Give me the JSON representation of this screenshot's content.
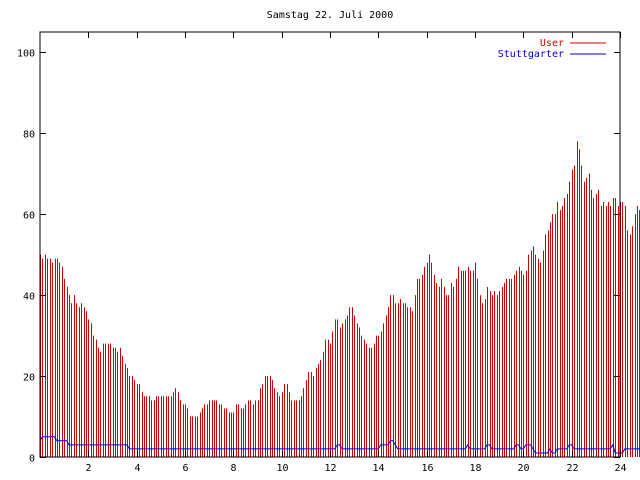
{
  "chart_data": {
    "type": "bar",
    "title": "Samstag 22. Juli 2000",
    "xlabel": "",
    "ylabel": "",
    "xlim": [
      0,
      24
    ],
    "ylim": [
      0,
      105
    ],
    "xticks": [
      2,
      4,
      6,
      8,
      10,
      12,
      14,
      16,
      18,
      20,
      22,
      24
    ],
    "yticks": [
      0,
      20,
      40,
      60,
      80,
      100
    ],
    "grid": false,
    "legend_position": "top-right",
    "step_hours": 0.1,
    "series": [
      {
        "name": "User",
        "color": "#cc0000",
        "style": "impulses",
        "values": [
          50,
          49,
          50,
          49,
          49,
          48,
          49,
          49,
          48,
          47,
          44,
          42,
          40,
          38,
          40,
          38,
          37,
          38,
          37,
          36,
          34,
          33,
          30,
          29,
          27,
          26,
          28,
          28,
          28,
          28,
          27,
          27,
          26,
          27,
          25,
          23,
          22,
          20,
          20,
          19,
          18,
          18,
          16,
          15,
          15,
          15,
          14,
          14,
          15,
          15,
          15,
          15,
          15,
          15,
          15,
          16,
          17,
          16,
          14,
          13,
          13,
          12,
          10,
          10,
          10,
          10,
          11,
          12,
          13,
          13,
          14,
          14,
          14,
          14,
          13,
          13,
          12,
          12,
          11,
          11,
          11,
          13,
          13,
          12,
          12,
          13,
          14,
          14,
          13,
          14,
          14,
          17,
          18,
          20,
          20,
          20,
          19,
          17,
          16,
          15,
          16,
          18,
          18,
          16,
          14,
          14,
          14,
          14,
          15,
          17,
          19,
          21,
          21,
          20,
          22,
          23,
          24,
          26,
          29,
          29,
          28,
          31,
          34,
          34,
          32,
          33,
          34,
          35,
          37,
          37,
          35,
          33,
          32,
          30,
          29,
          28,
          27,
          27,
          28,
          30,
          30,
          31,
          33,
          35,
          37,
          40,
          40,
          38,
          38,
          39,
          38,
          38,
          37,
          37,
          36,
          40,
          44,
          44,
          45,
          47,
          48,
          50,
          48,
          45,
          43,
          42,
          44,
          42,
          40,
          40,
          43,
          42,
          44,
          47,
          46,
          46,
          46,
          47,
          46,
          46,
          48,
          44,
          40,
          38,
          39,
          42,
          41,
          40,
          41,
          40,
          41,
          42,
          43,
          44,
          44,
          44,
          45,
          46,
          47,
          46,
          45,
          46,
          50,
          51,
          52,
          50,
          49,
          48,
          51,
          55,
          56,
          58,
          60,
          60,
          63,
          61,
          62,
          64,
          65,
          68,
          71,
          72,
          78,
          76,
          72,
          68,
          69,
          70,
          66,
          64,
          65,
          66,
          62,
          63,
          62,
          63,
          62,
          64,
          64,
          62,
          63,
          63,
          62,
          56,
          55,
          57,
          60,
          62,
          61,
          57,
          58
        ]
      },
      {
        "name": "Stuttgarter",
        "color": "#0000cc",
        "style": "lines",
        "values": [
          4,
          5,
          5,
          5,
          5,
          5,
          5,
          4,
          4,
          4,
          4,
          4,
          3,
          3,
          3,
          3,
          3,
          3,
          3,
          3,
          3,
          3,
          3,
          3,
          3,
          3,
          3,
          3,
          3,
          3,
          3,
          3,
          3,
          3,
          3,
          3,
          3,
          2,
          2,
          2,
          2,
          2,
          2,
          2,
          2,
          2,
          2,
          2,
          2,
          2,
          2,
          2,
          2,
          2,
          2,
          2,
          2,
          2,
          2,
          2,
          2,
          2,
          2,
          2,
          2,
          2,
          2,
          2,
          2,
          2,
          2,
          2,
          2,
          2,
          2,
          2,
          2,
          2,
          2,
          2,
          2,
          2,
          2,
          2,
          2,
          2,
          2,
          2,
          2,
          2,
          2,
          2,
          2,
          2,
          2,
          2,
          2,
          2,
          2,
          2,
          2,
          2,
          2,
          2,
          2,
          2,
          2,
          2,
          2,
          2,
          2,
          2,
          2,
          2,
          2,
          2,
          2,
          2,
          2,
          2,
          2,
          2,
          2,
          3,
          3,
          2,
          2,
          2,
          2,
          2,
          2,
          2,
          2,
          2,
          2,
          2,
          2,
          2,
          2,
          2,
          2,
          3,
          3,
          3,
          3,
          4,
          4,
          3,
          2,
          2,
          2,
          2,
          2,
          2,
          2,
          2,
          2,
          2,
          2,
          2,
          2,
          2,
          2,
          2,
          2,
          2,
          2,
          2,
          2,
          2,
          2,
          2,
          2,
          2,
          2,
          2,
          2,
          3,
          2,
          2,
          2,
          2,
          2,
          2,
          2,
          3,
          3,
          2,
          2,
          2,
          2,
          2,
          2,
          2,
          2,
          2,
          2,
          3,
          3,
          2,
          2,
          3,
          3,
          3,
          2,
          1,
          1,
          1,
          1,
          1,
          1,
          2,
          1,
          1,
          2,
          2,
          2,
          2,
          2,
          3,
          3,
          2,
          2,
          2,
          2,
          2,
          2,
          2,
          2,
          2,
          2,
          2,
          2,
          2,
          2,
          2,
          2,
          3,
          1,
          1,
          1,
          1,
          2,
          2,
          2,
          2,
          2,
          2,
          2,
          2,
          2
        ]
      }
    ]
  }
}
